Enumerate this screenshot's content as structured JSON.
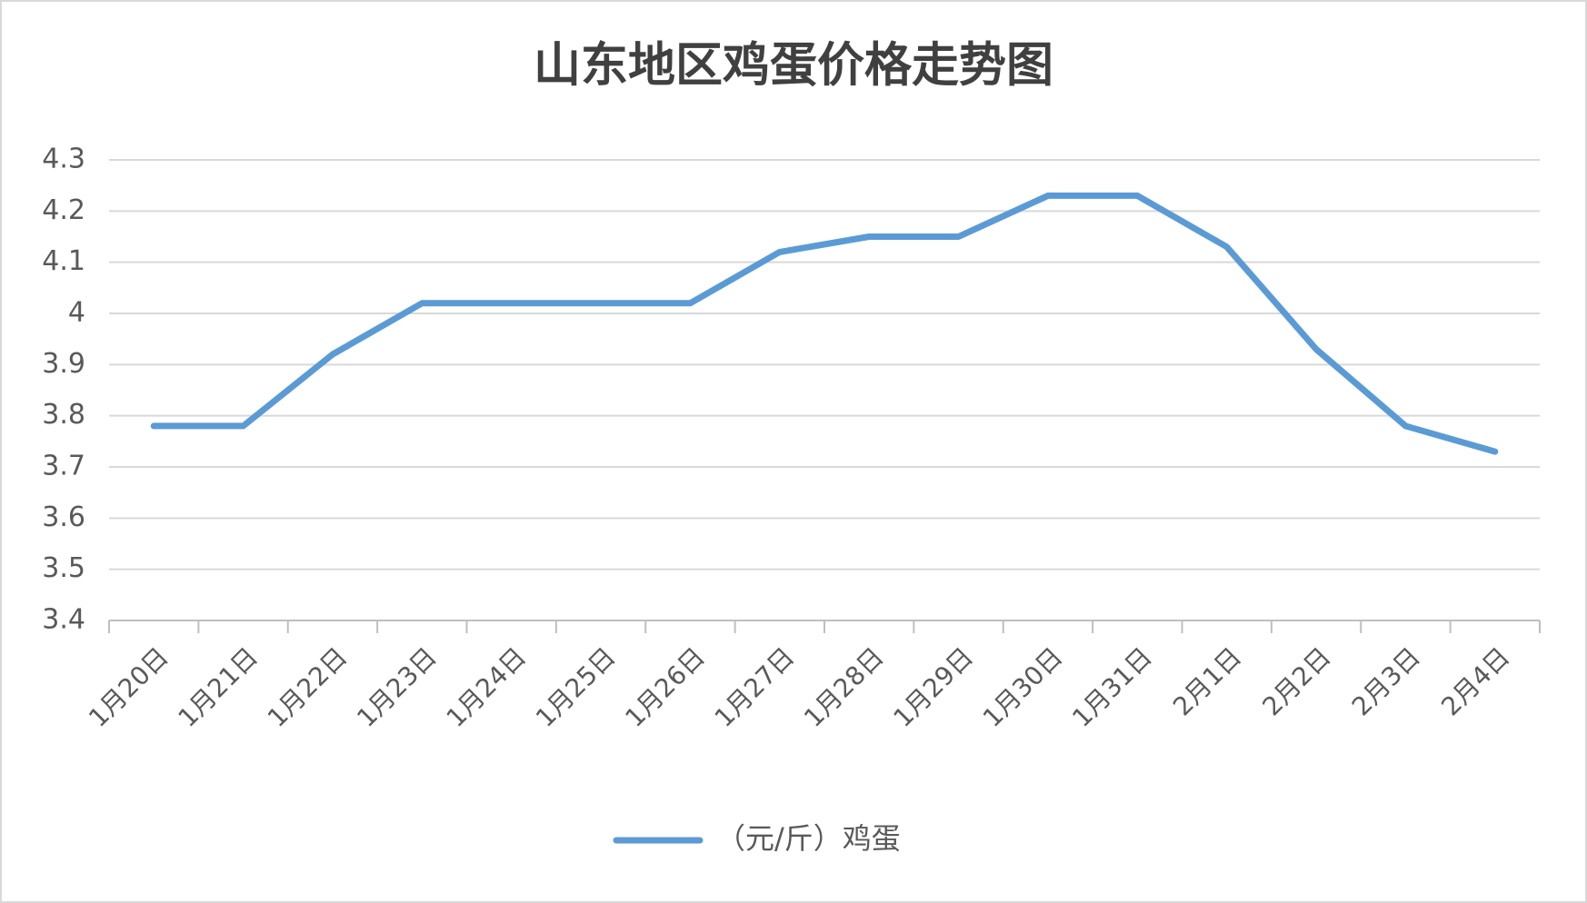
{
  "chart_data": {
    "type": "line",
    "title": "山东地区鸡蛋价格走势图",
    "categories": [
      "1月20日",
      "1月21日",
      "1月22日",
      "1月23日",
      "1月24日",
      "1月25日",
      "1月26日",
      "1月27日",
      "1月28日",
      "1月29日",
      "1月30日",
      "1月31日",
      "2月1日",
      "2月2日",
      "2月3日",
      "2月4日"
    ],
    "series": [
      {
        "name": "（元/斤）鸡蛋",
        "color": "#5b9bd5",
        "values": [
          3.78,
          3.78,
          3.92,
          4.02,
          4.02,
          4.02,
          4.02,
          4.12,
          4.15,
          4.15,
          4.23,
          4.23,
          4.13,
          3.93,
          3.78,
          3.73
        ]
      }
    ],
    "ylim": [
      3.4,
      4.3
    ],
    "yticks": [
      3.4,
      3.5,
      3.6,
      3.7,
      3.8,
      3.9,
      4,
      4.1,
      4.2,
      4.3
    ],
    "grid": true,
    "legend": "bottom"
  }
}
